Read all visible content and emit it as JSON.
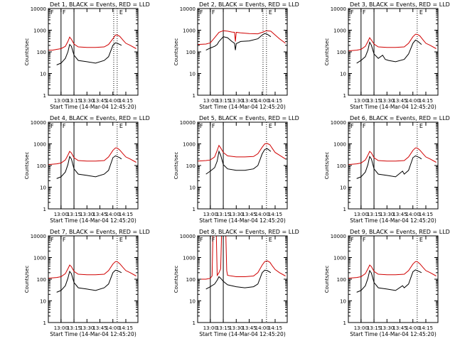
{
  "colors": {
    "events": "#000000",
    "lld": "#d00000",
    "axis": "#000000"
  },
  "common": {
    "title_suffix": ", BLACK = Events, RED = LLD",
    "xlabel": "Start Time (14-Mar-04 12:45:20)",
    "ylabel": "Counts/sec",
    "yscale": "log",
    "ylim": [
      1,
      10000
    ],
    "xlim": [
      "12:45:20",
      "14:29:00"
    ],
    "x_ticks": [
      "13:00",
      "13:15",
      "13:30",
      "13:45",
      "14:00",
      "14:15"
    ],
    "y_ticks": [
      "1",
      "10",
      "100",
      "1000",
      "10000"
    ],
    "markers": [
      "F",
      "F",
      "E",
      "E"
    ]
  },
  "chart_data": [
    {
      "type": "line",
      "title": "Det 1",
      "series": [
        {
          "color": "lld",
          "x": [
            "12:45",
            "12:50",
            "12:55",
            "13:00",
            "13:05",
            "13:08",
            "13:10",
            "13:12",
            "13:15",
            "13:20",
            "13:30",
            "13:40",
            "13:50",
            "13:55",
            "14:00",
            "14:03",
            "14:05",
            "14:08",
            "14:12",
            "14:15",
            "14:20",
            "14:27"
          ],
          "y": [
            120,
            120,
            130,
            140,
            180,
            300,
            480,
            380,
            230,
            170,
            160,
            160,
            170,
            220,
            400,
            600,
            600,
            520,
            340,
            250,
            200,
            140
          ]
        },
        {
          "color": "events",
          "x": [
            "12:55",
            "13:00",
            "13:05",
            "13:08",
            "13:10",
            "13:12",
            "13:15",
            "13:20",
            "13:30",
            "13:40",
            "13:50",
            "13:55",
            "14:00",
            "14:03",
            "14:05",
            "14:08",
            "14:10"
          ],
          "y": [
            25,
            30,
            50,
            100,
            220,
            180,
            70,
            40,
            35,
            30,
            40,
            60,
            200,
            260,
            250,
            220,
            200
          ]
        }
      ],
      "vlines_solid": [
        "13:00",
        "13:15"
      ],
      "vlines_dotted": [
        "14:01",
        "14:05"
      ]
    },
    {
      "type": "line",
      "title": "Det 2",
      "series": [
        {
          "color": "lld",
          "x": [
            "12:45",
            "12:55",
            "13:00",
            "13:05",
            "13:10",
            "13:15",
            "13:20",
            "13:25",
            "13:28",
            "13:29",
            "13:30",
            "13:35",
            "13:45",
            "13:55",
            "14:00",
            "14:05",
            "14:10",
            "14:15",
            "14:20",
            "14:27"
          ],
          "y": [
            220,
            230,
            260,
            450,
            800,
            950,
            900,
            820,
            800,
            300,
            800,
            750,
            700,
            680,
            800,
            950,
            900,
            600,
            400,
            250
          ]
        },
        {
          "color": "events",
          "x": [
            "12:55",
            "13:00",
            "13:05",
            "13:08",
            "13:10",
            "13:15",
            "13:20",
            "13:25",
            "13:28",
            "13:29",
            "13:30",
            "13:35",
            "13:45",
            "13:55",
            "14:00",
            "14:03",
            "14:06",
            "14:10"
          ],
          "y": [
            120,
            150,
            180,
            220,
            300,
            500,
            450,
            300,
            250,
            120,
            240,
            300,
            320,
            400,
            600,
            700,
            650,
            500
          ]
        }
      ],
      "vlines_solid": [
        "13:00",
        "13:15"
      ],
      "vlines_dotted": [
        "14:01",
        "14:05"
      ]
    },
    {
      "type": "line",
      "title": "Det 3",
      "series": [
        {
          "color": "lld",
          "x": [
            "12:45",
            "12:55",
            "13:00",
            "13:05",
            "13:08",
            "13:10",
            "13:12",
            "13:15",
            "13:20",
            "13:30",
            "13:40",
            "13:50",
            "13:55",
            "14:00",
            "14:03",
            "14:05",
            "14:08",
            "14:12",
            "14:15",
            "14:20",
            "14:27"
          ],
          "y": [
            110,
            120,
            130,
            180,
            300,
            450,
            350,
            230,
            170,
            160,
            160,
            170,
            250,
            500,
            650,
            650,
            550,
            350,
            250,
            200,
            140
          ]
        },
        {
          "color": "events",
          "x": [
            "12:55",
            "13:00",
            "13:05",
            "13:08",
            "13:10",
            "13:12",
            "13:15",
            "13:20",
            "13:25",
            "13:28",
            "13:32",
            "13:40",
            "13:50",
            "13:55",
            "14:00",
            "14:03",
            "14:06",
            "14:10"
          ],
          "y": [
            30,
            40,
            60,
            120,
            280,
            200,
            80,
            50,
            70,
            45,
            40,
            35,
            45,
            80,
            250,
            350,
            300,
            220
          ]
        }
      ],
      "vlines_solid": [
        "13:00",
        "13:15"
      ],
      "vlines_dotted": [
        "14:05"
      ]
    },
    {
      "type": "line",
      "title": "Det 4",
      "series": [
        {
          "color": "lld",
          "x": [
            "12:45",
            "12:55",
            "13:00",
            "13:05",
            "13:08",
            "13:10",
            "13:12",
            "13:15",
            "13:20",
            "13:30",
            "13:40",
            "13:50",
            "13:55",
            "14:00",
            "14:03",
            "14:05",
            "14:08",
            "14:12",
            "14:15",
            "14:20",
            "14:27"
          ],
          "y": [
            110,
            120,
            130,
            180,
            300,
            450,
            380,
            230,
            170,
            160,
            160,
            170,
            250,
            500,
            650,
            650,
            520,
            340,
            250,
            200,
            140
          ]
        },
        {
          "color": "events",
          "x": [
            "12:55",
            "13:00",
            "13:05",
            "13:08",
            "13:10",
            "13:12",
            "13:15",
            "13:20",
            "13:30",
            "13:40",
            "13:50",
            "13:55",
            "14:00",
            "14:03",
            "14:05",
            "14:08",
            "14:10"
          ],
          "y": [
            25,
            30,
            50,
            110,
            260,
            200,
            70,
            40,
            35,
            30,
            40,
            60,
            230,
            280,
            260,
            230,
            200
          ]
        }
      ],
      "vlines_solid": [
        "13:00",
        "13:15"
      ],
      "vlines_dotted": [
        "14:05"
      ]
    },
    {
      "type": "line",
      "title": "Det 5",
      "series": [
        {
          "color": "lld",
          "x": [
            "12:45",
            "12:55",
            "13:00",
            "13:05",
            "13:08",
            "13:10",
            "13:12",
            "13:15",
            "13:20",
            "13:30",
            "13:40",
            "13:50",
            "13:55",
            "14:00",
            "14:03",
            "14:06",
            "14:09",
            "14:12",
            "14:15",
            "14:20",
            "14:27"
          ],
          "y": [
            160,
            170,
            180,
            250,
            500,
            850,
            650,
            400,
            280,
            250,
            250,
            260,
            350,
            700,
            1000,
            1050,
            900,
            600,
            400,
            300,
            200
          ]
        },
        {
          "color": "events",
          "x": [
            "12:55",
            "13:00",
            "13:05",
            "13:08",
            "13:10",
            "13:12",
            "13:15",
            "13:20",
            "13:30",
            "13:40",
            "13:50",
            "13:55",
            "14:00",
            "14:03",
            "14:06",
            "14:10"
          ],
          "y": [
            40,
            55,
            80,
            160,
            450,
            300,
            110,
            70,
            60,
            60,
            70,
            100,
            350,
            550,
            600,
            450
          ]
        }
      ],
      "vlines_solid": [
        "13:00",
        "13:15"
      ],
      "vlines_dotted": [
        "14:05"
      ]
    },
    {
      "type": "line",
      "title": "Det 6",
      "series": [
        {
          "color": "lld",
          "x": [
            "12:45",
            "12:55",
            "13:00",
            "13:05",
            "13:08",
            "13:10",
            "13:12",
            "13:15",
            "13:20",
            "13:30",
            "13:40",
            "13:50",
            "13:55",
            "14:00",
            "14:03",
            "14:05",
            "14:08",
            "14:12",
            "14:15",
            "14:20",
            "14:27"
          ],
          "y": [
            110,
            120,
            130,
            180,
            300,
            450,
            380,
            230,
            170,
            160,
            160,
            170,
            250,
            500,
            650,
            650,
            520,
            340,
            250,
            200,
            140
          ]
        },
        {
          "color": "events",
          "x": [
            "12:55",
            "13:00",
            "13:05",
            "13:08",
            "13:10",
            "13:12",
            "13:15",
            "13:20",
            "13:30",
            "13:40",
            "13:48",
            "13:50",
            "13:55",
            "14:00",
            "14:03",
            "14:05",
            "14:08",
            "14:10"
          ],
          "y": [
            25,
            30,
            50,
            110,
            260,
            200,
            70,
            40,
            35,
            30,
            55,
            40,
            60,
            230,
            280,
            260,
            230,
            200
          ]
        }
      ],
      "vlines_solid": [
        "13:00",
        "13:15"
      ],
      "vlines_dotted": [
        "14:05"
      ]
    },
    {
      "type": "line",
      "title": "Det 7",
      "series": [
        {
          "color": "lld",
          "x": [
            "12:45",
            "12:55",
            "13:00",
            "13:05",
            "13:08",
            "13:10",
            "13:12",
            "13:15",
            "13:20",
            "13:30",
            "13:40",
            "13:50",
            "13:55",
            "14:00",
            "14:03",
            "14:05",
            "14:08",
            "14:12",
            "14:15",
            "14:20",
            "14:27"
          ],
          "y": [
            110,
            120,
            130,
            180,
            300,
            450,
            380,
            230,
            170,
            160,
            160,
            170,
            250,
            500,
            650,
            650,
            520,
            340,
            250,
            200,
            140
          ]
        },
        {
          "color": "events",
          "x": [
            "12:55",
            "13:00",
            "13:05",
            "13:08",
            "13:10",
            "13:12",
            "13:15",
            "13:20",
            "13:30",
            "13:40",
            "13:50",
            "13:55",
            "14:00",
            "14:03",
            "14:05",
            "14:08",
            "14:10"
          ],
          "y": [
            25,
            30,
            50,
            110,
            230,
            180,
            70,
            40,
            35,
            30,
            40,
            60,
            200,
            260,
            250,
            220,
            200
          ]
        }
      ],
      "vlines_solid": [
        "13:00",
        "13:15"
      ],
      "vlines_dotted": [
        "14:05"
      ]
    },
    {
      "type": "line",
      "title": "Det 8",
      "series": [
        {
          "color": "lld",
          "x": [
            "12:45",
            "12:55",
            "13:00",
            "13:02",
            "13:03",
            "13:07",
            "13:08",
            "13:10",
            "13:12",
            "13:13",
            "13:18",
            "13:19",
            "13:20",
            "13:30",
            "13:40",
            "13:50",
            "13:55",
            "14:00",
            "14:03",
            "14:06",
            "14:09",
            "14:12",
            "14:15",
            "14:20",
            "14:27"
          ],
          "y": [
            100,
            100,
            110,
            140,
            10000,
            10000,
            150,
            200,
            300,
            10000,
            10000,
            250,
            150,
            130,
            130,
            140,
            200,
            450,
            650,
            700,
            600,
            400,
            280,
            200,
            140
          ]
        },
        {
          "color": "events",
          "x": [
            "12:55",
            "13:00",
            "13:05",
            "13:08",
            "13:10",
            "13:12",
            "13:15",
            "13:20",
            "13:30",
            "13:40",
            "13:50",
            "13:55",
            "14:00",
            "14:03",
            "14:06",
            "14:10"
          ],
          "y": [
            35,
            45,
            60,
            90,
            130,
            110,
            80,
            55,
            45,
            40,
            45,
            60,
            200,
            260,
            250,
            200
          ]
        }
      ],
      "vlines_solid": [
        "13:00",
        "13:15"
      ],
      "vlines_dotted": [
        "14:05"
      ]
    },
    {
      "type": "line",
      "title": "Det 9",
      "series": [
        {
          "color": "lld",
          "x": [
            "12:45",
            "12:55",
            "13:00",
            "13:05",
            "13:08",
            "13:10",
            "13:12",
            "13:15",
            "13:20",
            "13:30",
            "13:40",
            "13:50",
            "13:55",
            "14:00",
            "14:03",
            "14:05",
            "14:08",
            "14:12",
            "14:15",
            "14:20",
            "14:27"
          ],
          "y": [
            110,
            120,
            130,
            180,
            300,
            450,
            380,
            230,
            170,
            160,
            160,
            170,
            250,
            500,
            650,
            650,
            520,
            340,
            250,
            200,
            140
          ]
        },
        {
          "color": "events",
          "x": [
            "12:55",
            "13:00",
            "13:05",
            "13:08",
            "13:10",
            "13:12",
            "13:15",
            "13:20",
            "13:30",
            "13:40",
            "13:48",
            "13:50",
            "13:55",
            "14:00",
            "14:03",
            "14:05",
            "14:08",
            "14:10"
          ],
          "y": [
            25,
            30,
            50,
            110,
            250,
            190,
            70,
            40,
            35,
            30,
            50,
            40,
            60,
            220,
            270,
            250,
            220,
            200
          ]
        }
      ],
      "vlines_solid": [
        "13:00",
        "13:15"
      ],
      "vlines_dotted": [
        "14:05"
      ]
    }
  ]
}
